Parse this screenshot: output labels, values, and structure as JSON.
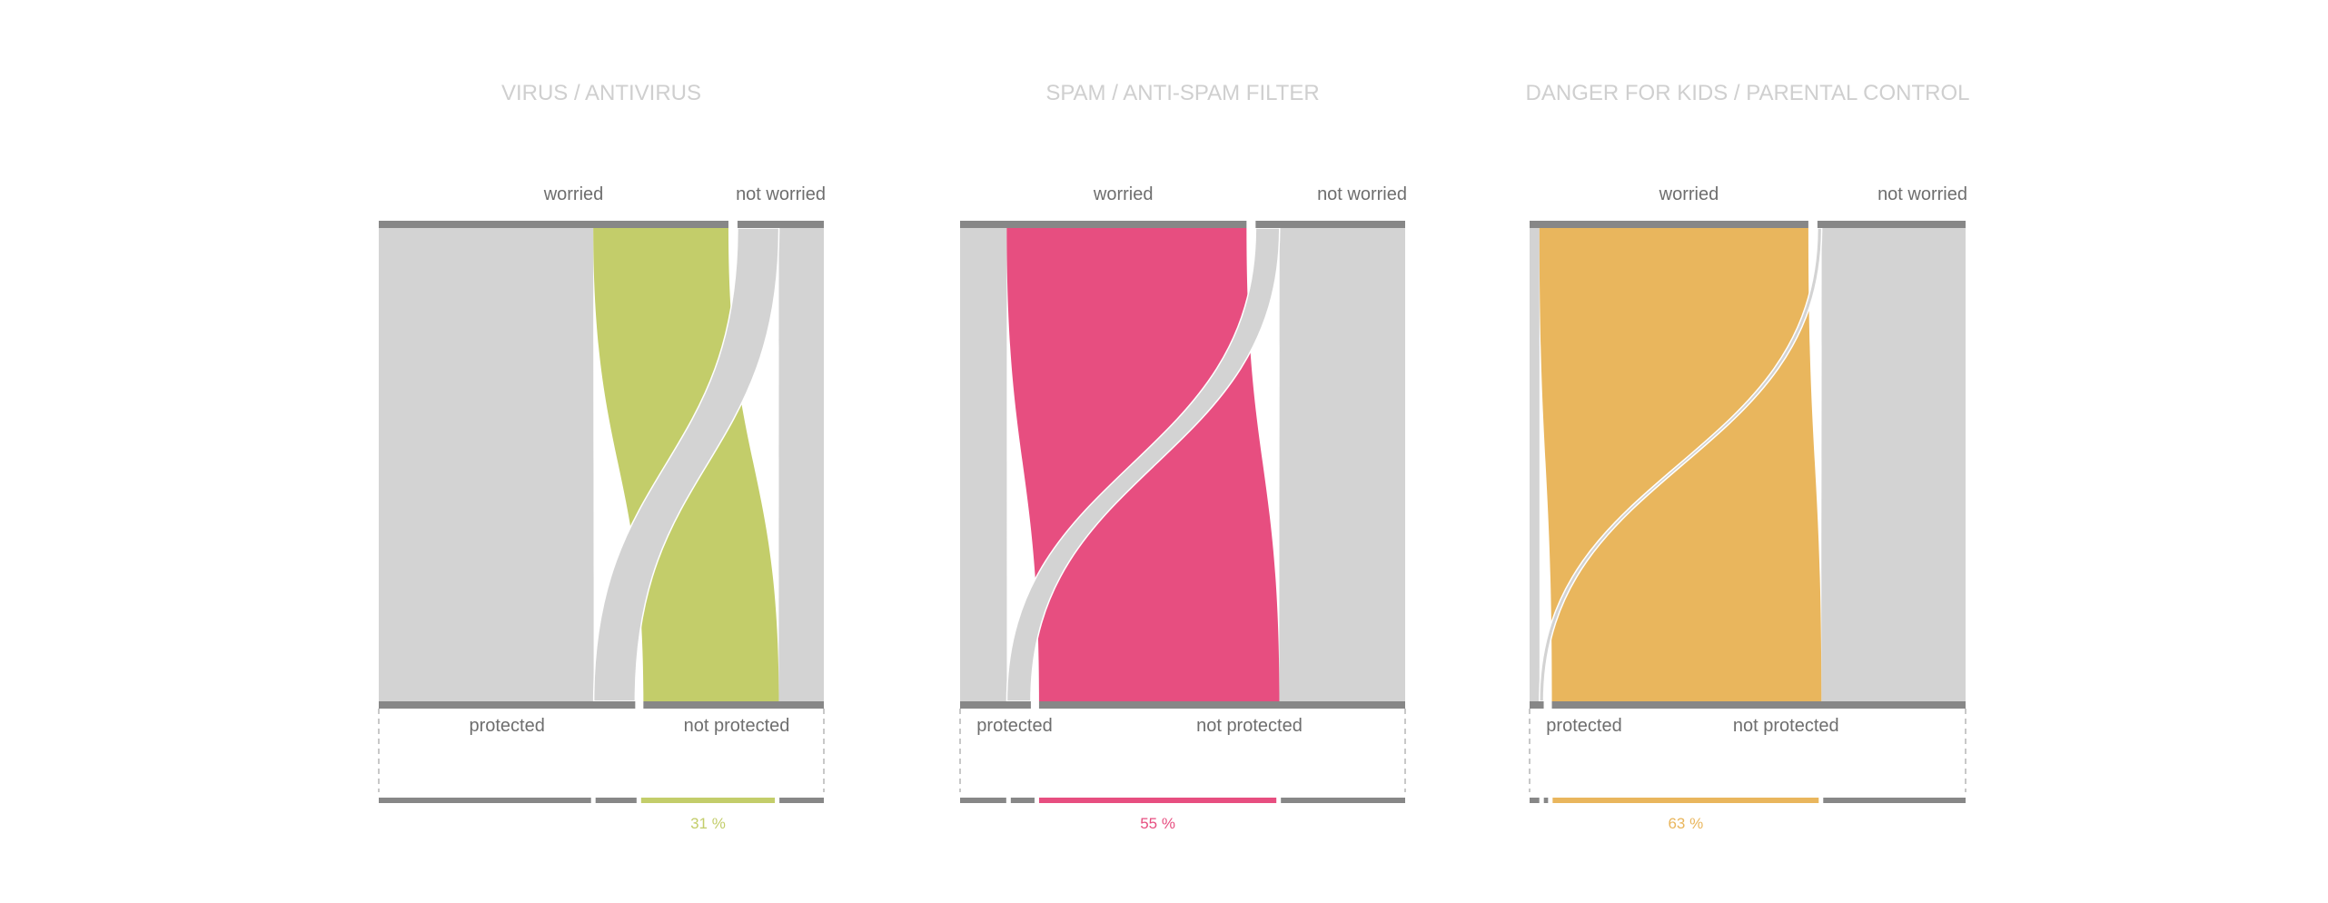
{
  "colors": {
    "grey_flow": "#d3d3d3",
    "node_bar": "#878787",
    "label_text": "#6e6e6e",
    "title_text": "#cfcfcf",
    "dash": "#b5b5b5"
  },
  "chart_data": [
    {
      "type": "sankey",
      "title": "VIRUS / ANTIVIRUS",
      "top_labels": [
        "worried",
        "not worried"
      ],
      "bottom_labels": [
        "protected",
        "not protected"
      ],
      "flows": [
        {
          "from": "worried",
          "to": "protected",
          "value": 49.2
        },
        {
          "from": "worried",
          "to": "not protected",
          "value": 31.0
        },
        {
          "from": "not worried",
          "to": "protected",
          "value": 9.5
        },
        {
          "from": "not worried",
          "to": "not protected",
          "value": 10.3
        }
      ],
      "highlight_label": "31 %",
      "color": "#c3cd6a"
    },
    {
      "type": "sankey",
      "title": "SPAM / ANTI-SPAM FILTER",
      "top_labels": [
        "worried",
        "not worried"
      ],
      "bottom_labels": [
        "protected",
        "not protected"
      ],
      "flows": [
        {
          "from": "worried",
          "to": "protected",
          "value": 10.7
        },
        {
          "from": "worried",
          "to": "not protected",
          "value": 55.0
        },
        {
          "from": "not worried",
          "to": "protected",
          "value": 5.5
        },
        {
          "from": "not worried",
          "to": "not protected",
          "value": 28.8
        }
      ],
      "highlight_label": "55 %",
      "color": "#e74e80"
    },
    {
      "type": "sankey",
      "title": "DANGER FOR KIDS / PARENTAL CONTROL",
      "top_labels": [
        "worried",
        "not worried"
      ],
      "bottom_labels": [
        "protected",
        "not protected"
      ],
      "flows": [
        {
          "from": "worried",
          "to": "protected",
          "value": 2.3
        },
        {
          "from": "worried",
          "to": "not protected",
          "value": 63.0
        },
        {
          "from": "not worried",
          "to": "protected",
          "value": 1.0
        },
        {
          "from": "not worried",
          "to": "not protected",
          "value": 33.7
        }
      ],
      "highlight_label": "63 %",
      "color": "#e9b65d"
    }
  ]
}
